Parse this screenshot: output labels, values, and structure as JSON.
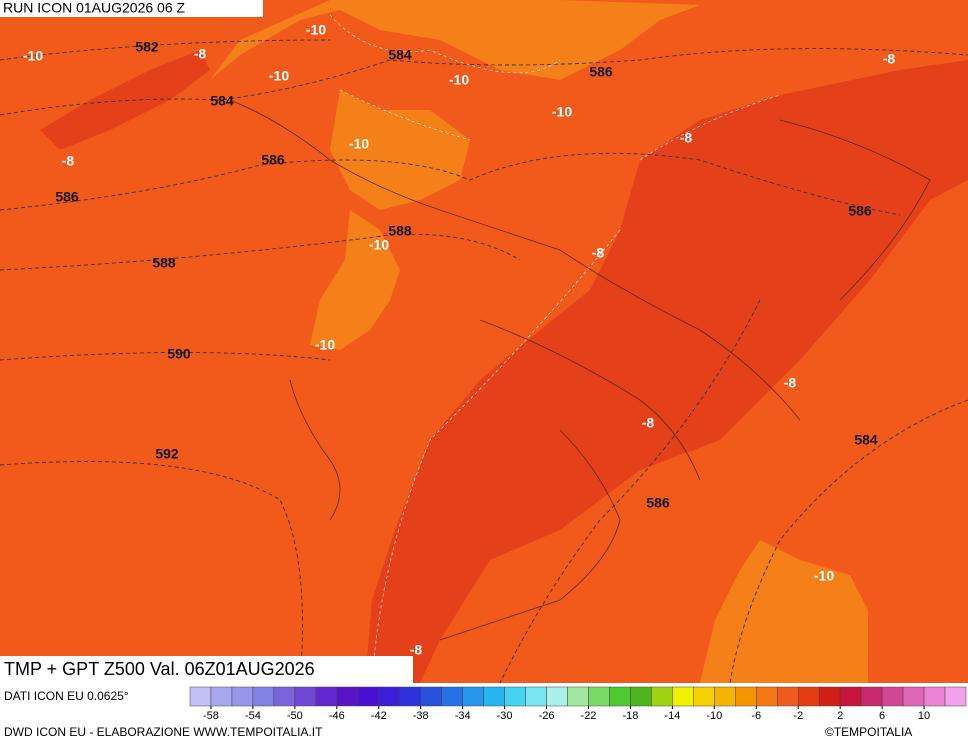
{
  "header": {
    "run": "RUN ICON 01AUG2026 06 Z"
  },
  "map": {
    "labels": [
      -10,
      582,
      -8,
      -10,
      584,
      -10,
      586,
      -10,
      -8,
      584,
      -10,
      -8,
      -8,
      -10,
      586,
      586,
      586,
      588,
      -10,
      -8,
      588,
      -10,
      590,
      -8,
      -8,
      584,
      592,
      586,
      -10,
      -8
    ]
  },
  "footer": {
    "title": "TMP + GPT Z500 Val. 06Z01AUG2026",
    "source": "DATI ICON EU 0.0625°",
    "credit": "DWD ICON EU - ELABORAZIONE WWW.TEMPOITALIA.IT",
    "copyright": "©TEMPOITALIA"
  },
  "colorbar": {
    "lim": [
      -60,
      14
    ],
    "ticks": [
      -58,
      -54,
      -50,
      -46,
      -42,
      -38,
      -34,
      -30,
      -26,
      -22,
      -18,
      -14,
      -10,
      -6,
      -2,
      2,
      6,
      10
    ],
    "colors": [
      "#c0c0f5",
      "#a8a8f0",
      "#9696ea",
      "#8282e4",
      "#7a64de",
      "#7046d8",
      "#6428d0",
      "#5a14c8",
      "#4a10d0",
      "#3c1ed8",
      "#2e32dc",
      "#2850dc",
      "#2870e6",
      "#2896ee",
      "#28b4f2",
      "#46d2f2",
      "#78e6f0",
      "#a8f0e8",
      "#a0e8a0",
      "#78dc64",
      "#50c832",
      "#50b41e",
      "#a0d214",
      "#f0f000",
      "#f5d200",
      "#f5b400",
      "#f59600",
      "#f57814",
      "#f05a1e",
      "#e63c14",
      "#d21e14",
      "#c8143c",
      "#c8286e",
      "#d24696",
      "#e064b8",
      "#ec82d4",
      "#f5a0ea"
    ]
  }
}
